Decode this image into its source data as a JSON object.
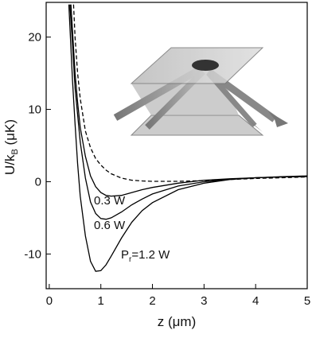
{
  "chart_data": {
    "type": "line",
    "xlabel": {
      "main": "z (μm)"
    },
    "ylabel": {
      "main": "U/k",
      "sub": "B",
      "rest": " (μK)"
    },
    "annotations": {
      "a03": "0.3 W",
      "a06": "0.6 W",
      "p": "P",
      "psub": "r",
      "prest": "=1.2 W"
    },
    "xlim": [
      -0.06,
      5.0
    ],
    "ylim": [
      -14.8,
      24.8
    ],
    "xticks": [
      0,
      1,
      2,
      3,
      4,
      5
    ],
    "yticks": [
      -10,
      0,
      10,
      20
    ],
    "series": [
      {
        "color": "#000000",
        "dash": true,
        "x": [
          0.47,
          0.5,
          0.55,
          0.6,
          0.7,
          0.8,
          0.9,
          1.0,
          1.1,
          1.2,
          1.4,
          1.6,
          1.8,
          2.0,
          2.5,
          3.0,
          3.5,
          4.0,
          4.5,
          5.0
        ],
        "values": [
          24.5,
          20,
          15,
          11.5,
          7,
          4.7,
          3.2,
          2.3,
          1.6,
          1.1,
          0.5,
          0.2,
          0.1,
          0.05,
          0.05,
          0.15,
          0.3,
          0.45,
          0.55,
          0.65
        ]
      },
      {
        "color": "#000000",
        "dash": false,
        "x": [
          0.42,
          0.5,
          0.55,
          0.6,
          0.7,
          0.8,
          0.9,
          1.0,
          1.1,
          1.2,
          1.4,
          1.6,
          1.8,
          2.0,
          2.5,
          3.0,
          3.5,
          4.0,
          4.5,
          5.0
        ],
        "values": [
          24.5,
          15,
          11,
          7.5,
          3.5,
          0.8,
          -0.7,
          -1.5,
          -1.9,
          -2.0,
          -1.9,
          -1.5,
          -1.1,
          -0.8,
          -0.2,
          0.2,
          0.4,
          0.55,
          0.65,
          0.7
        ]
      },
      {
        "color": "#000000",
        "dash": false,
        "x": [
          0.4,
          0.45,
          0.5,
          0.6,
          0.7,
          0.8,
          0.9,
          1.0,
          1.1,
          1.2,
          1.4,
          1.6,
          1.8,
          2.0,
          2.5,
          3.0,
          3.5,
          4.0,
          4.5,
          5.0
        ],
        "values": [
          24.5,
          19,
          13,
          5.5,
          0.5,
          -2.8,
          -4.4,
          -5.1,
          -5.2,
          -5.0,
          -4.2,
          -3.2,
          -2.4,
          -1.7,
          -0.6,
          0,
          0.35,
          0.55,
          0.65,
          0.75
        ]
      },
      {
        "color": "#000000",
        "dash": false,
        "x": [
          0.38,
          0.45,
          0.5,
          0.55,
          0.6,
          0.7,
          0.8,
          0.9,
          1.0,
          1.1,
          1.2,
          1.4,
          1.6,
          1.8,
          2.0,
          2.5,
          3.0,
          3.5,
          4.0,
          4.5,
          5.0
        ],
        "values": [
          24.5,
          14,
          8,
          2.5,
          -2,
          -7.5,
          -11,
          -12.4,
          -12.3,
          -11.5,
          -10.3,
          -7.8,
          -5.6,
          -4.0,
          -2.9,
          -1.1,
          -0.2,
          0.3,
          0.55,
          0.7,
          0.8
        ]
      }
    ]
  }
}
